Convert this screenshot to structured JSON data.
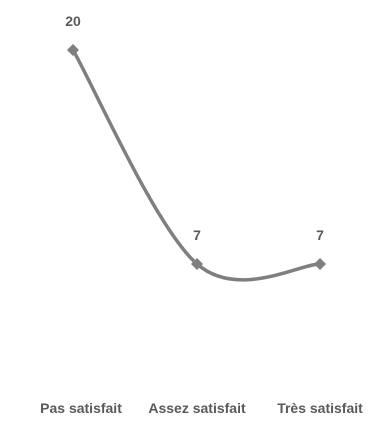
{
  "chart_data": {
    "type": "line",
    "title": "",
    "xlabel": "",
    "ylabel": "",
    "categories": [
      "Pas satisfait",
      "Assez satisfait",
      "Très satisfait"
    ],
    "series": [
      {
        "values": [
          20,
          7,
          7
        ],
        "color": "#7f7f7f"
      }
    ],
    "smooth": true,
    "grid": false,
    "legend": "none",
    "data_label_color": "#595959"
  }
}
